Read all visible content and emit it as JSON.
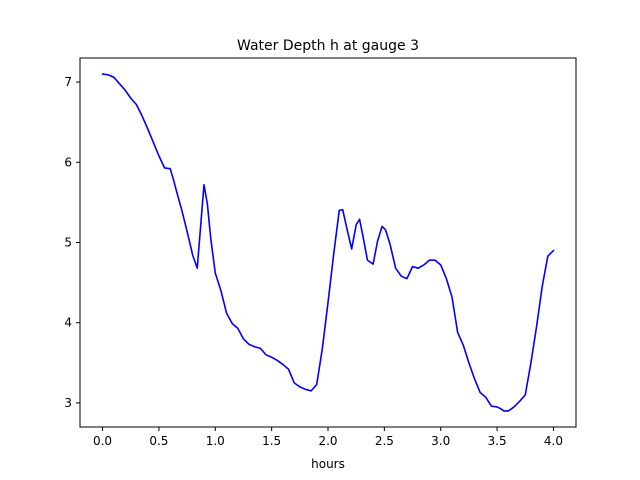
{
  "chart_data": {
    "type": "line",
    "title": "Water Depth h at gauge 3",
    "xlabel": "hours",
    "ylabel": "",
    "xlim": [
      -0.2,
      4.2
    ],
    "ylim": [
      2.7,
      7.3
    ],
    "xticks": [
      0.0,
      0.5,
      1.0,
      1.5,
      2.0,
      2.5,
      3.0,
      3.5,
      4.0
    ],
    "xtick_labels": [
      "0.0",
      "0.5",
      "1.0",
      "1.5",
      "2.0",
      "2.5",
      "3.0",
      "3.5",
      "4.0"
    ],
    "yticks": [
      3,
      4,
      5,
      6,
      7
    ],
    "ytick_labels": [
      "3",
      "4",
      "5",
      "6",
      "7"
    ],
    "grid": false,
    "line_color": "#0000ff",
    "series": [
      {
        "x": [
          0.0,
          0.05,
          0.1,
          0.15,
          0.2,
          0.25,
          0.3,
          0.35,
          0.4,
          0.45,
          0.5,
          0.55,
          0.6,
          0.63,
          0.66,
          0.7,
          0.75,
          0.8,
          0.84,
          0.87,
          0.9,
          0.93,
          0.96,
          1.0,
          1.05,
          1.1,
          1.15,
          1.2,
          1.25,
          1.3,
          1.35,
          1.4,
          1.45,
          1.5,
          1.55,
          1.6,
          1.65,
          1.7,
          1.75,
          1.8,
          1.85,
          1.9,
          1.95,
          2.0,
          2.05,
          2.1,
          2.13,
          2.17,
          2.21,
          2.25,
          2.28,
          2.31,
          2.35,
          2.4,
          2.44,
          2.48,
          2.51,
          2.55,
          2.6,
          2.65,
          2.7,
          2.75,
          2.8,
          2.85,
          2.9,
          2.95,
          3.0,
          3.05,
          3.1,
          3.15,
          3.2,
          3.25,
          3.3,
          3.35,
          3.4,
          3.45,
          3.5,
          3.53,
          3.56,
          3.6,
          3.65,
          3.7,
          3.75,
          3.8,
          3.85,
          3.9,
          3.95,
          4.0
        ],
        "y": [
          7.1,
          7.09,
          7.06,
          6.98,
          6.9,
          6.8,
          6.72,
          6.58,
          6.42,
          6.25,
          6.08,
          5.93,
          5.92,
          5.78,
          5.62,
          5.42,
          5.14,
          4.84,
          4.68,
          5.2,
          5.72,
          5.48,
          5.05,
          4.62,
          4.4,
          4.12,
          3.99,
          3.93,
          3.8,
          3.73,
          3.7,
          3.68,
          3.6,
          3.57,
          3.53,
          3.48,
          3.42,
          3.25,
          3.2,
          3.17,
          3.15,
          3.23,
          3.68,
          4.25,
          4.85,
          5.4,
          5.41,
          5.16,
          4.92,
          5.22,
          5.29,
          5.08,
          4.78,
          4.73,
          5.02,
          5.2,
          5.16,
          4.98,
          4.68,
          4.58,
          4.55,
          4.7,
          4.68,
          4.72,
          4.78,
          4.78,
          4.72,
          4.55,
          4.32,
          3.88,
          3.72,
          3.5,
          3.3,
          3.13,
          3.07,
          2.96,
          2.95,
          2.93,
          2.9,
          2.9,
          2.95,
          3.02,
          3.1,
          3.5,
          3.95,
          4.45,
          4.83,
          4.9
        ]
      }
    ]
  }
}
